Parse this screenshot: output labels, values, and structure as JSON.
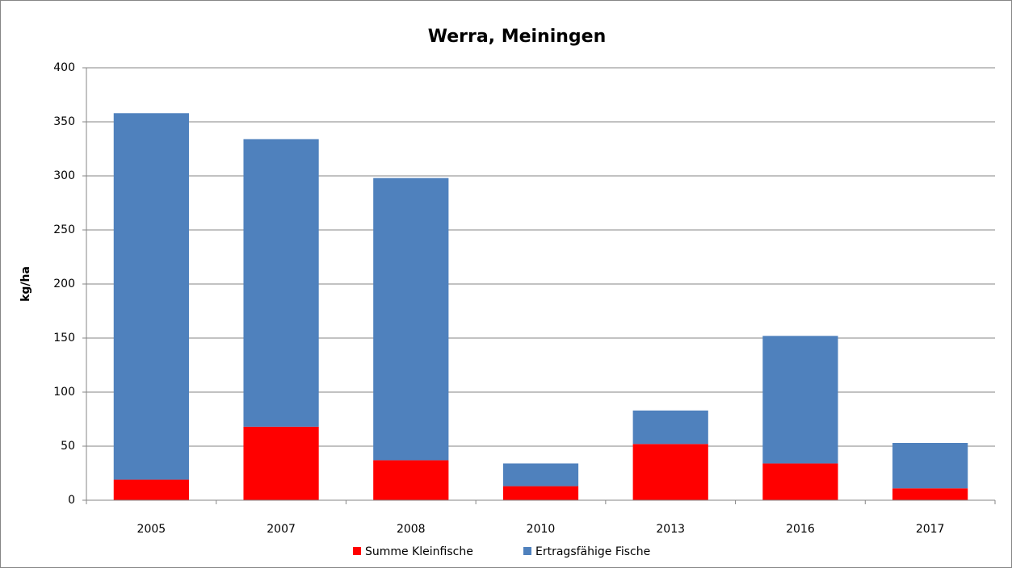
{
  "chart_data": {
    "type": "stacked_bar",
    "title": "Werra, Meiningen",
    "y_label": "kg/ha",
    "categories": [
      "2005",
      "2007",
      "2008",
      "2010",
      "2013",
      "2016",
      "2017"
    ],
    "series": [
      {
        "name": "Summe Kleinfische",
        "color": "#ff0000",
        "values": [
          19,
          68,
          37,
          13,
          52,
          34,
          11
        ]
      },
      {
        "name": "Ertragsfähige Fische",
        "color": "#4f81bd",
        "values": [
          339,
          266,
          261,
          21,
          31,
          118,
          42
        ]
      }
    ],
    "ylim": [
      0,
      400
    ],
    "yticks": [
      0,
      50,
      100,
      150,
      200,
      250,
      300,
      350,
      400
    ],
    "grid": true,
    "legend": "bottom"
  }
}
